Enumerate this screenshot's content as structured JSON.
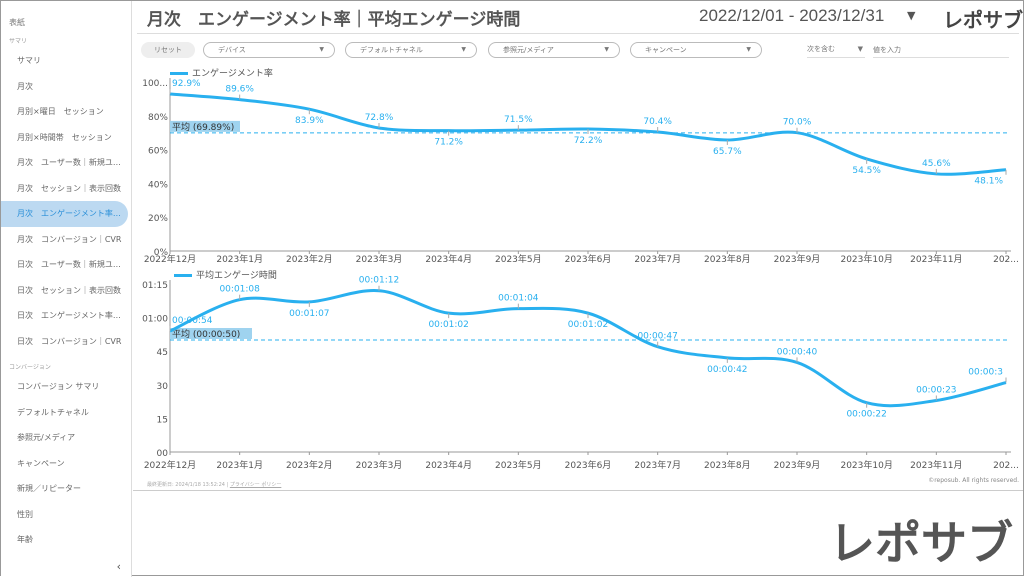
{
  "sidebar": {
    "cover": "表紙",
    "sections": [
      {
        "label": "サマリ",
        "items": [
          "サマリ",
          "月次",
          "月別×曜日　セッション",
          "月別×時間帯　セッション",
          "月次　ユーザー数｜新規ユーザー数",
          "月次　セッション｜表示回数",
          "月次　エンゲージメント率｜平均エンゲージ時間",
          "月次　コンバージョン｜CVR",
          "日次　ユーザー数｜新規ユーザー数",
          "日次　セッション｜表示回数",
          "日次　エンゲージメント率｜平均エンゲージ時間",
          "日次　コンバージョン｜CVR"
        ]
      },
      {
        "label": "コンバージョン",
        "items": [
          "コンバージョン サマリ",
          "デフォルトチャネル",
          "参照元/メディア",
          "キャンペーン",
          "新規／リピーター",
          "性別",
          "年齢"
        ]
      }
    ],
    "active": "月次　エンゲージメント率｜平均エンゲージ時間",
    "collapse": "‹"
  },
  "header": {
    "title": "月次　エンゲージメント率｜平均エンゲージ時間",
    "date_range": "2022/12/01 - 2023/12/31",
    "logo": "レポサブ"
  },
  "filters": {
    "reset": "リセット",
    "dropdowns": [
      "デバイス",
      "デフォルトチャネル",
      "参照元/メディア",
      "キャンペーン"
    ],
    "condition": "次を含む",
    "value_placeholder": "値を入力"
  },
  "footer": {
    "updated": "最終更新日: 2024/1/18 13:52:24",
    "privacy": "プライバシー ポリシー",
    "copyright": "©reposub. All rights reserved.",
    "watermark": "レポサブ"
  },
  "colors": {
    "line": "#29b0ef",
    "avg_bg": "#9fd3ef"
  },
  "chart_data": [
    {
      "type": "line",
      "series": [
        {
          "name": "エンゲージメント率",
          "values": [
            92.9,
            89.6,
            83.9,
            72.8,
            71.2,
            71.5,
            72.2,
            70.4,
            65.7,
            70.0,
            54.5,
            45.6,
            48.1
          ]
        }
      ],
      "categories": [
        "2022年12月",
        "2023年1月",
        "2023年2月",
        "2023年3月",
        "2023年4月",
        "2023年5月",
        "2023年6月",
        "2023年7月",
        "2023年8月",
        "2023年9月",
        "2023年10月",
        "2023年11月",
        "202..."
      ],
      "data_labels": [
        "92.9%",
        "89.6%",
        "83.9%",
        "72.8%",
        "71.2%",
        "71.5%",
        "72.2%",
        "70.4%",
        "65.7%",
        "70.0%",
        "54.5%",
        "45.6%",
        "48.1%"
      ],
      "yticks": [
        "0%",
        "20%",
        "40%",
        "60%",
        "80%",
        "100..."
      ],
      "ylim": [
        0,
        100
      ],
      "average": 69.89,
      "average_label": "平均 (69.89%)",
      "legend": "top-left"
    },
    {
      "type": "line",
      "series": [
        {
          "name": "平均エンゲージ時間",
          "values": [
            54,
            68,
            67,
            72,
            62,
            64,
            62,
            47,
            42,
            40,
            22,
            23,
            31
          ]
        }
      ],
      "categories": [
        "2022年12月",
        "2023年1月",
        "2023年2月",
        "2023年3月",
        "2023年4月",
        "2023年5月",
        "2023年6月",
        "2023年7月",
        "2023年8月",
        "2023年9月",
        "2023年10月",
        "2023年11月",
        "202..."
      ],
      "data_labels": [
        "00:00:54",
        "00:01:08",
        "00:01:07",
        "00:01:12",
        "00:01:02",
        "00:01:04",
        "00:01:02",
        "00:00:47",
        "00:00:42",
        "00:00:40",
        "00:00:22",
        "00:00:23",
        "00:00:3"
      ],
      "yticks": [
        "00",
        "15",
        "30",
        "45",
        "01:00",
        "01:15"
      ],
      "ylim": [
        0,
        75
      ],
      "average": 50,
      "average_label": "平均 (00:00:50)",
      "legend": "top-left"
    }
  ]
}
